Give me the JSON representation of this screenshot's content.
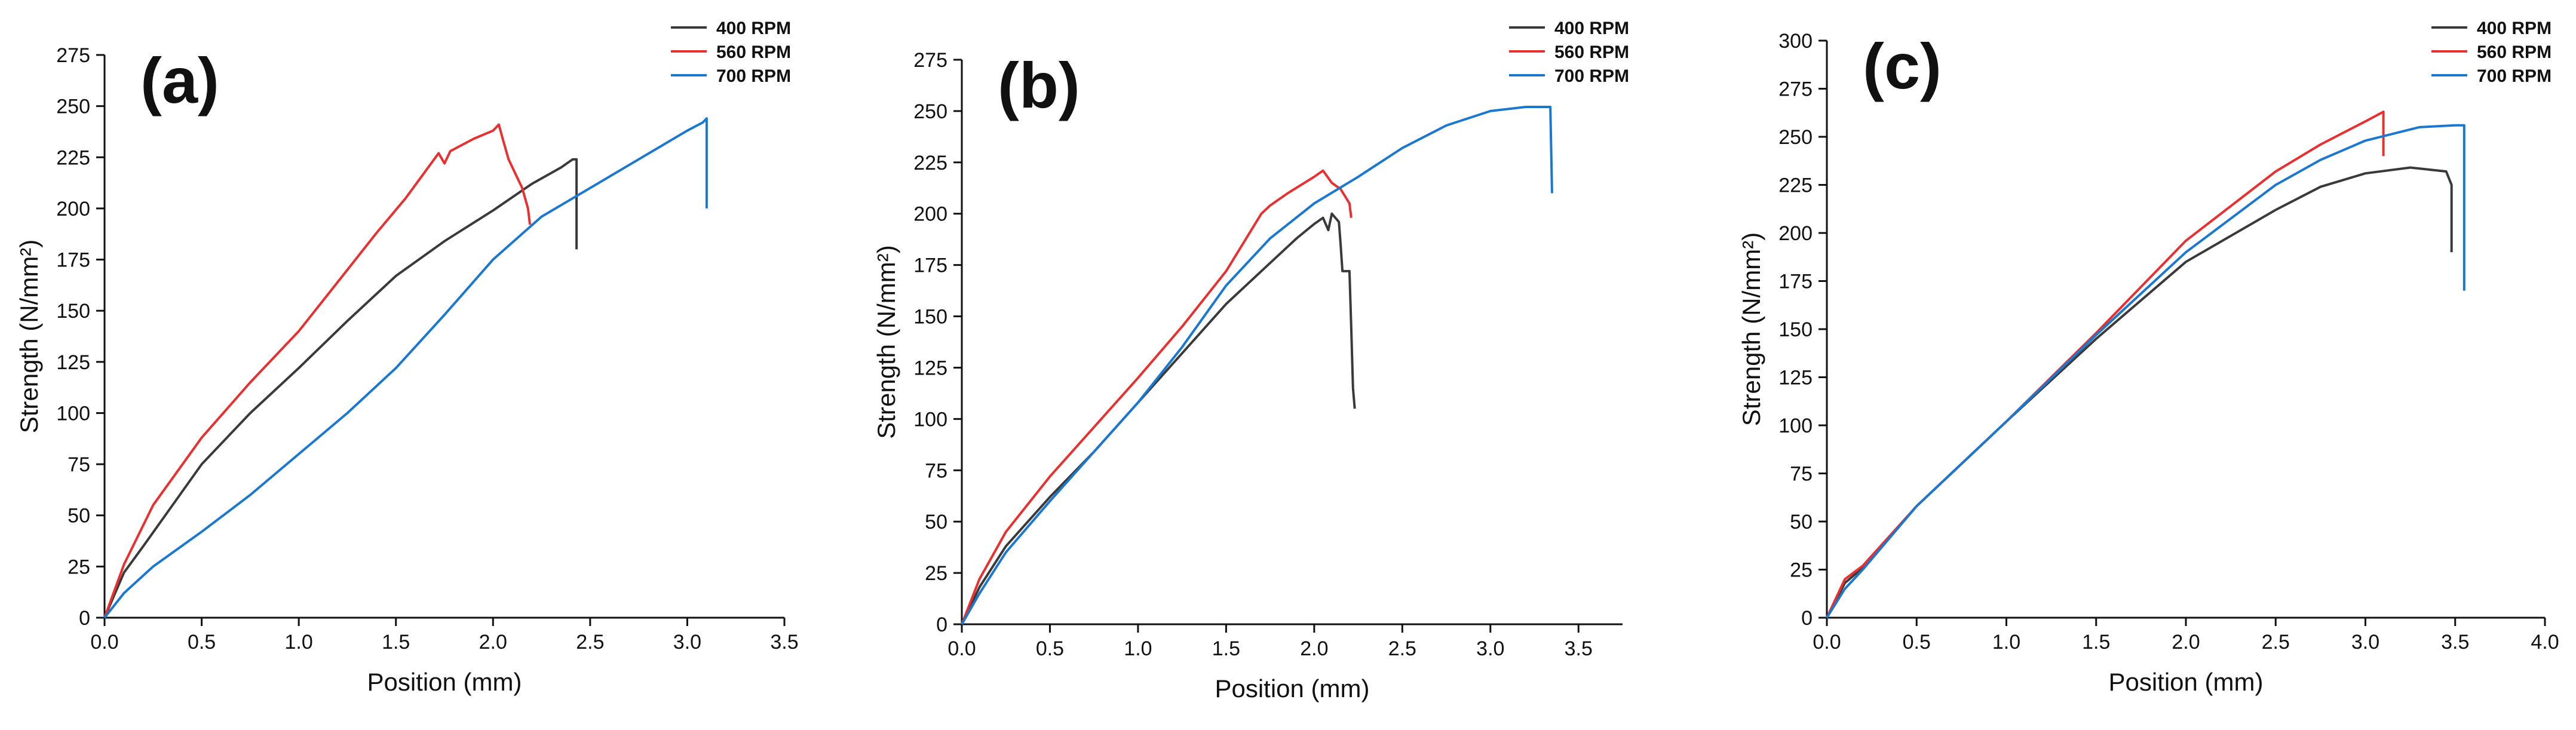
{
  "chart_data": [
    {
      "type": "line",
      "panel": "(a)",
      "xlabel": "Position (mm)",
      "ylabel": "Strength (N/mm²)",
      "xlim": [
        0,
        3.5
      ],
      "ylim": [
        0,
        275
      ],
      "xticks": [
        "0.0",
        "0.5",
        "1.0",
        "1.5",
        "2.0",
        "2.5",
        "3.0",
        "3.5"
      ],
      "yticks": [
        "0",
        "25",
        "50",
        "75",
        "100",
        "125",
        "150",
        "175",
        "200",
        "225",
        "250",
        "275"
      ],
      "legend_position": "top-right",
      "series": [
        {
          "name": "400 RPM",
          "color": "#3a3a3a",
          "points": [
            [
              0,
              0
            ],
            [
              0.1,
              22
            ],
            [
              0.2,
              35
            ],
            [
              0.35,
              55
            ],
            [
              0.5,
              75
            ],
            [
              0.75,
              100
            ],
            [
              1.0,
              122
            ],
            [
              1.25,
              145
            ],
            [
              1.5,
              167
            ],
            [
              1.75,
              184
            ],
            [
              2.0,
              199
            ],
            [
              2.2,
              212
            ],
            [
              2.35,
              220
            ],
            [
              2.41,
              224
            ],
            [
              2.43,
              224
            ],
            [
              2.43,
              180
            ]
          ]
        },
        {
          "name": "560 RPM",
          "color": "#e83030",
          "points": [
            [
              0,
              0
            ],
            [
              0.1,
              26
            ],
            [
              0.25,
              55
            ],
            [
              0.5,
              88
            ],
            [
              0.75,
              115
            ],
            [
              1.0,
              140
            ],
            [
              1.1,
              152
            ],
            [
              1.25,
              170
            ],
            [
              1.4,
              188
            ],
            [
              1.55,
              205
            ],
            [
              1.72,
              227
            ],
            [
              1.75,
              222
            ],
            [
              1.78,
              228
            ],
            [
              1.9,
              234
            ],
            [
              2.0,
              238
            ],
            [
              2.03,
              241
            ],
            [
              2.05,
              234
            ],
            [
              2.08,
              224
            ],
            [
              2.12,
              216
            ],
            [
              2.15,
              210
            ],
            [
              2.18,
              200
            ],
            [
              2.19,
              192
            ]
          ]
        },
        {
          "name": "700 RPM",
          "color": "#1a78d0",
          "points": [
            [
              0,
              0
            ],
            [
              0.05,
              6
            ],
            [
              0.1,
              12
            ],
            [
              0.25,
              25
            ],
            [
              0.5,
              42
            ],
            [
              0.75,
              60
            ],
            [
              1.0,
              80
            ],
            [
              1.25,
              100
            ],
            [
              1.5,
              122
            ],
            [
              1.75,
              148
            ],
            [
              2.0,
              175
            ],
            [
              2.25,
              196
            ],
            [
              2.5,
              210
            ],
            [
              2.75,
              224
            ],
            [
              3.0,
              238
            ],
            [
              3.08,
              242
            ],
            [
              3.1,
              244
            ],
            [
              3.1,
              200
            ]
          ]
        }
      ]
    },
    {
      "type": "line",
      "panel": "(b)",
      "xlabel": "Position (mm)",
      "ylabel": "Strength (N/mm²)",
      "xlim": [
        0,
        3.75
      ],
      "ylim": [
        0,
        275
      ],
      "xticks": [
        "0.0",
        "0.5",
        "1.0",
        "1.5",
        "2.0",
        "2.5",
        "3.0",
        "3.5"
      ],
      "yticks": [
        "0",
        "25",
        "50",
        "75",
        "100",
        "125",
        "150",
        "175",
        "200",
        "225",
        "250",
        "275"
      ],
      "legend_position": "top-right",
      "series": [
        {
          "name": "400 RPM",
          "color": "#3a3a3a",
          "points": [
            [
              0,
              0
            ],
            [
              0.1,
              18
            ],
            [
              0.25,
              38
            ],
            [
              0.5,
              62
            ],
            [
              0.75,
              84
            ],
            [
              1.0,
              108
            ],
            [
              1.25,
              132
            ],
            [
              1.5,
              156
            ],
            [
              1.75,
              176
            ],
            [
              1.9,
              188
            ],
            [
              2.0,
              195
            ],
            [
              2.05,
              198
            ],
            [
              2.08,
              192
            ],
            [
              2.1,
              200
            ],
            [
              2.14,
              196
            ],
            [
              2.15,
              185
            ],
            [
              2.16,
              172
            ],
            [
              2.2,
              172
            ],
            [
              2.21,
              145
            ],
            [
              2.22,
              115
            ],
            [
              2.23,
              105
            ]
          ]
        },
        {
          "name": "560 RPM",
          "color": "#e83030",
          "points": [
            [
              0,
              0
            ],
            [
              0.1,
              22
            ],
            [
              0.25,
              45
            ],
            [
              0.5,
              72
            ],
            [
              0.75,
              96
            ],
            [
              1.0,
              120
            ],
            [
              1.25,
              145
            ],
            [
              1.5,
              172
            ],
            [
              1.7,
              200
            ],
            [
              1.75,
              204
            ],
            [
              1.85,
              210
            ],
            [
              2.0,
              218
            ],
            [
              2.05,
              221
            ],
            [
              2.1,
              215
            ],
            [
              2.15,
              212
            ],
            [
              2.2,
              205
            ],
            [
              2.21,
              198
            ]
          ]
        },
        {
          "name": "700 RPM",
          "color": "#1a78d0",
          "points": [
            [
              0,
              0
            ],
            [
              0.1,
              15
            ],
            [
              0.25,
              35
            ],
            [
              0.5,
              60
            ],
            [
              0.75,
              84
            ],
            [
              1.0,
              108
            ],
            [
              1.25,
              135
            ],
            [
              1.5,
              165
            ],
            [
              1.75,
              188
            ],
            [
              2.0,
              205
            ],
            [
              2.25,
              218
            ],
            [
              2.5,
              232
            ],
            [
              2.75,
              243
            ],
            [
              3.0,
              250
            ],
            [
              3.2,
              252
            ],
            [
              3.34,
              252
            ],
            [
              3.35,
              210
            ]
          ]
        }
      ]
    },
    {
      "type": "line",
      "panel": "(c)",
      "xlabel": "Position (mm)",
      "ylabel": "Strength (N/mm²)",
      "xlim": [
        0,
        4.0
      ],
      "ylim": [
        0,
        300
      ],
      "xticks": [
        "0.0",
        "0.5",
        "1.0",
        "1.5",
        "2.0",
        "2.5",
        "3.0",
        "3.5",
        "4.0"
      ],
      "yticks": [
        "0",
        "25",
        "50",
        "75",
        "100",
        "125",
        "150",
        "175",
        "200",
        "225",
        "250",
        "275",
        "300"
      ],
      "legend_position": "top-right",
      "series": [
        {
          "name": "400 RPM",
          "color": "#3a3a3a",
          "points": [
            [
              0,
              0
            ],
            [
              0.1,
              18
            ],
            [
              0.2,
              26
            ],
            [
              0.5,
              58
            ],
            [
              1.0,
              102
            ],
            [
              1.5,
              145
            ],
            [
              2.0,
              185
            ],
            [
              2.5,
              212
            ],
            [
              2.75,
              224
            ],
            [
              3.0,
              231
            ],
            [
              3.25,
              234
            ],
            [
              3.45,
              232
            ],
            [
              3.48,
              225
            ],
            [
              3.48,
              190
            ]
          ]
        },
        {
          "name": "560 RPM",
          "color": "#e83030",
          "points": [
            [
              0,
              0
            ],
            [
              0.1,
              20
            ],
            [
              0.2,
              27
            ],
            [
              0.5,
              58
            ],
            [
              1.0,
              102
            ],
            [
              1.5,
              148
            ],
            [
              2.0,
              196
            ],
            [
              2.5,
              232
            ],
            [
              2.75,
              246
            ],
            [
              3.0,
              258
            ],
            [
              3.08,
              262
            ],
            [
              3.1,
              263
            ],
            [
              3.1,
              240
            ]
          ]
        },
        {
          "name": "700 RPM",
          "color": "#1a78d0",
          "points": [
            [
              0,
              0
            ],
            [
              0.1,
              15
            ],
            [
              0.2,
              25
            ],
            [
              0.5,
              58
            ],
            [
              1.0,
              102
            ],
            [
              1.5,
              147
            ],
            [
              2.0,
              190
            ],
            [
              2.5,
              225
            ],
            [
              2.75,
              238
            ],
            [
              3.0,
              248
            ],
            [
              3.3,
              255
            ],
            [
              3.5,
              256
            ],
            [
              3.55,
              256
            ],
            [
              3.55,
              170
            ]
          ]
        }
      ]
    }
  ]
}
